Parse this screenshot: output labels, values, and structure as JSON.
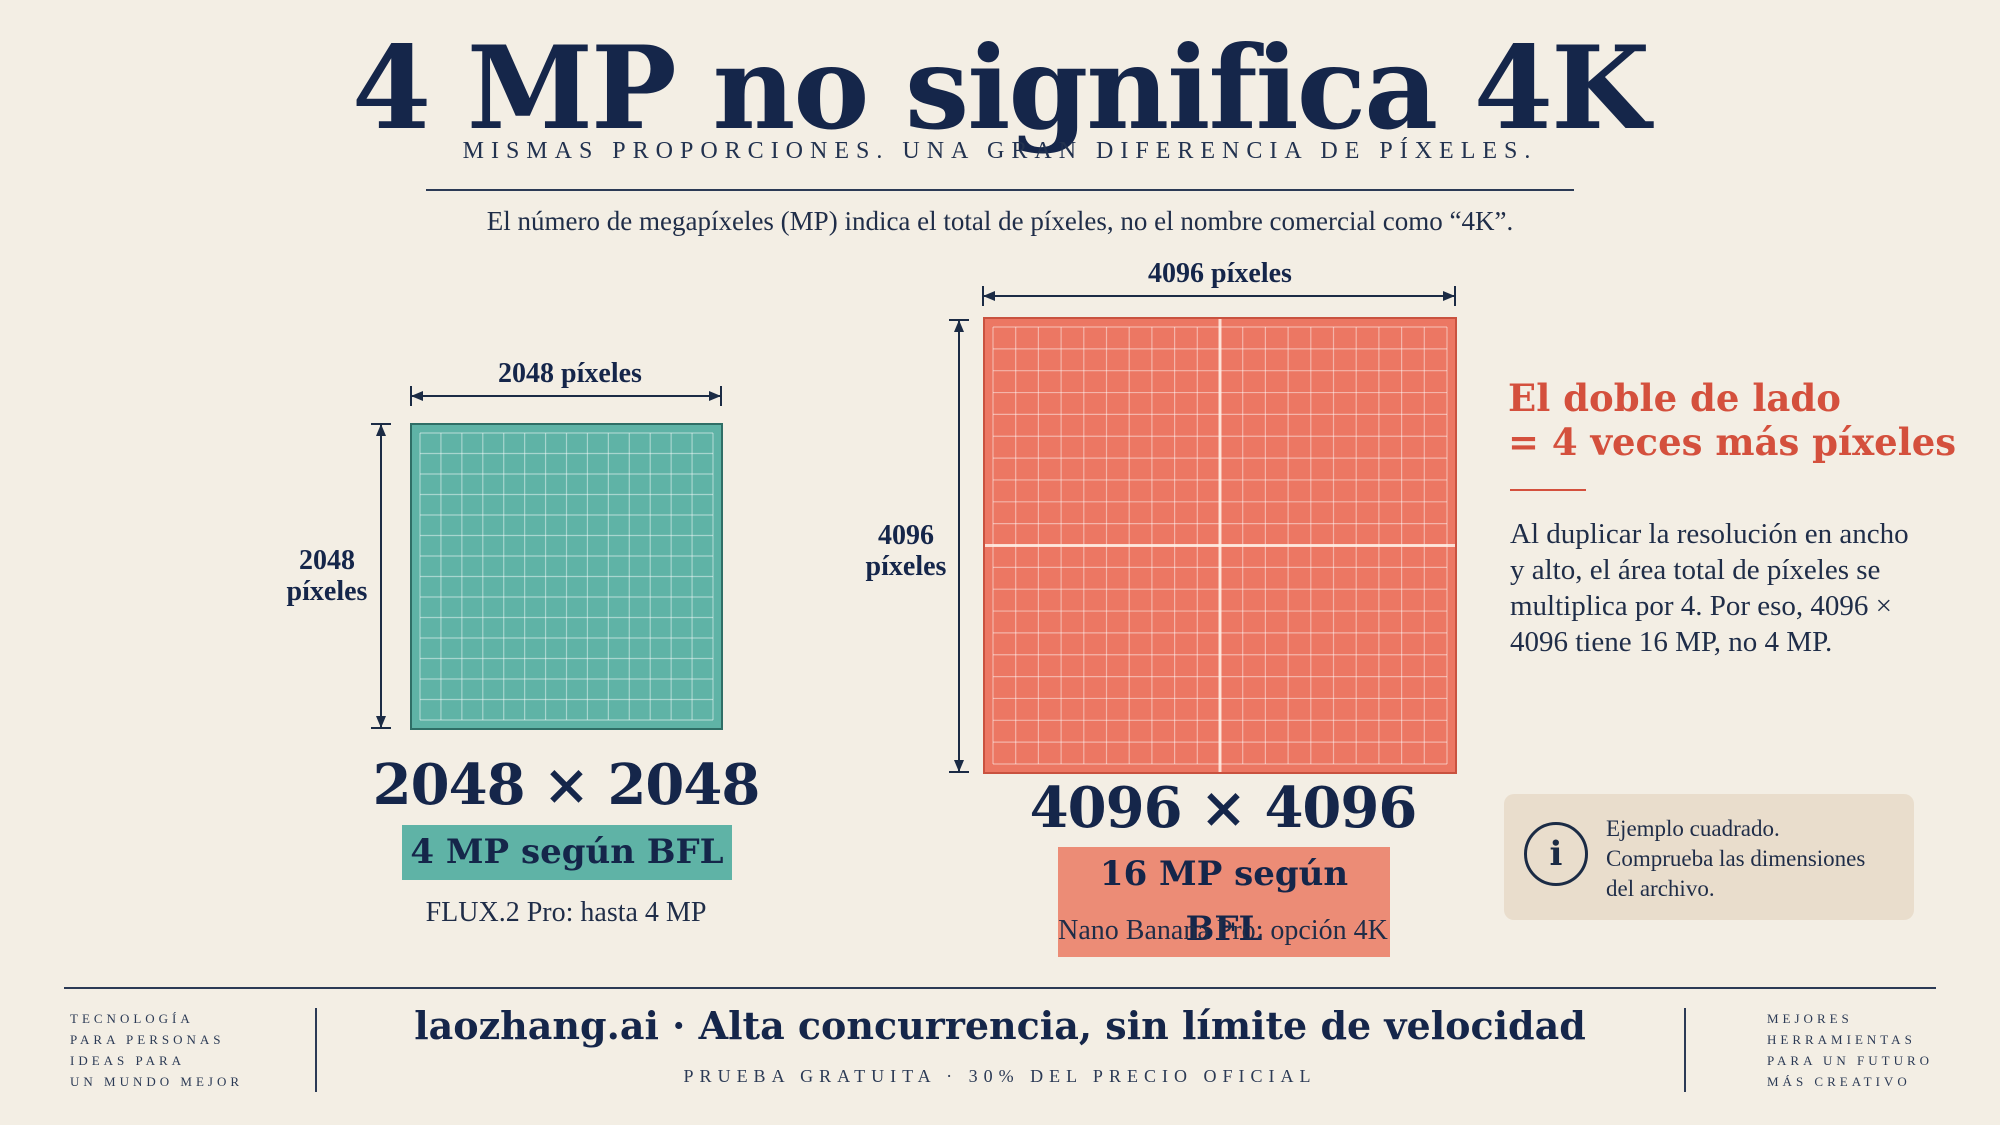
{
  "header": {
    "title": "4 MP no significa 4K",
    "subtitle": "MISMAS PROPORCIONES. UNA GRAN DIFERENCIA DE PÍXELES.",
    "intro": "El número de megapíxeles (MP) indica el total de píxeles, no el nombre comercial como “4K”."
  },
  "small_square": {
    "width_label": "2048 píxeles",
    "height_label_line1": "2048",
    "height_label_line2": "píxeles",
    "dimensions": "2048 × 2048",
    "badge": "4 MP según BFL",
    "caption": "FLUX.2 Pro: hasta 4 MP",
    "color": "#5fb3a6"
  },
  "large_square": {
    "width_label": "4096 píxeles",
    "height_label_line1": "4096",
    "height_label_line2": "píxeles",
    "dimensions": "4096 × 4096",
    "badge": "16 MP según BFL",
    "caption": "Nano Banana Pro: opción 4K",
    "color": "#ec7763"
  },
  "callout": {
    "title_line1": "El doble de lado",
    "title_line2": "= 4 veces más píxeles",
    "body": "Al duplicar la resolución en ancho y alto, el área total de píxeles se multiplica por 4. Por eso, 4096 × 4096 tiene 16 MP, no 4 MP."
  },
  "info": {
    "icon": "info-icon",
    "icon_glyph": "i",
    "line1": "Ejemplo cuadrado.",
    "line2": "Comprueba las dimensiones",
    "line3": "del archivo."
  },
  "footer": {
    "left_lines": [
      "TECNOLOGÍA",
      "PARA PERSONAS",
      "IDEAS PARA",
      "UN MUNDO MEJOR"
    ],
    "main": "laozhang.ai · Alta concurrencia, sin límite de velocidad",
    "sub": "PRUEBA GRATUITA · 30% DEL PRECIO OFICIAL",
    "right_lines": [
      "MEJORES",
      "HERRAMIENTAS",
      "PARA UN FUTURO",
      "MÁS CREATIVO"
    ]
  },
  "colors": {
    "navy": "#15264a",
    "accent_red": "#d4503d",
    "background": "#f3eee4"
  }
}
